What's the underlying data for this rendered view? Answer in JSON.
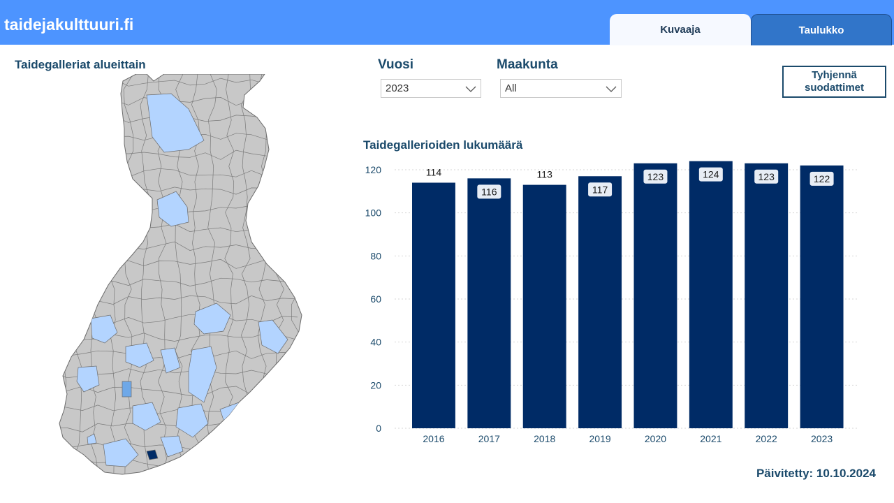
{
  "header": {
    "site_title": "taidejakulttuuri.fi",
    "tabs": [
      {
        "label": "Kuvaaja",
        "active": true
      },
      {
        "label": "Taulukko",
        "active": false
      }
    ]
  },
  "map": {
    "title": "Taidegalleriat alueittain",
    "colors": {
      "none": "#c8c8c8",
      "some": "#b3d4ff",
      "more": "#6ea8e8",
      "most": "#002b66",
      "border": "#6b6b6b"
    }
  },
  "filters": {
    "year_label": "Vuosi",
    "year_value": "2023",
    "region_label": "Maakunta",
    "region_value": "All",
    "clear_label": "Tyhjennä\nsuodattimet"
  },
  "chart": {
    "title": "Taidegallerioiden lukumäärä"
  },
  "chart_data": {
    "type": "bar",
    "categories": [
      "2016",
      "2017",
      "2018",
      "2019",
      "2020",
      "2021",
      "2022",
      "2023"
    ],
    "values": [
      114,
      116,
      113,
      117,
      123,
      124,
      123,
      122
    ],
    "ylim": [
      0,
      120
    ],
    "yticks": [
      0,
      20,
      40,
      60,
      80,
      100,
      120
    ],
    "grid": true,
    "bar_color": "#002b66",
    "label_color": "#1b4a6b",
    "xlabel": "",
    "ylabel": ""
  },
  "footer": {
    "updated": "Päivitetty: 10.10.2024"
  },
  "colors": {
    "brand": "#4d94ff",
    "accent": "#1b4a6b",
    "tab_active": "#f6f9ff",
    "tab_inactive": "#3175c9"
  }
}
